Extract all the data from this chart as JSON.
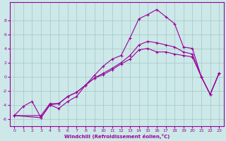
{
  "title": "",
  "xlabel": "Windchill (Refroidissement éolien,°C)",
  "ylabel": "",
  "bg_color": "#cce8e8",
  "line_color": "#990099",
  "grid_color": "#aacccc",
  "xlim": [
    -0.5,
    23.5
  ],
  "ylim": [
    -7.0,
    10.5
  ],
  "yticks": [
    -6,
    -4,
    -2,
    0,
    2,
    4,
    6,
    8
  ],
  "xticks": [
    0,
    1,
    2,
    3,
    4,
    5,
    6,
    7,
    8,
    9,
    10,
    11,
    12,
    13,
    14,
    15,
    16,
    17,
    18,
    19,
    20,
    21,
    22,
    23
  ],
  "line1_x": [
    0,
    1,
    2,
    3,
    4,
    5,
    6,
    7,
    8,
    9,
    10,
    11,
    12,
    13,
    14,
    15,
    16,
    17,
    18,
    19,
    20,
    21,
    22,
    23
  ],
  "line1_y": [
    -5.5,
    -4.2,
    -3.5,
    -5.8,
    -4.0,
    -4.5,
    -3.5,
    -2.8,
    -1.2,
    0.2,
    1.5,
    2.5,
    3.0,
    5.5,
    8.2,
    8.8,
    9.5,
    8.5,
    7.5,
    4.2,
    4.0,
    0.0,
    -2.5,
    0.5
  ],
  "line2_x": [
    0,
    3,
    4,
    5,
    6,
    7,
    8,
    9,
    10,
    11,
    12,
    13,
    14,
    15,
    16,
    17,
    18,
    19,
    20,
    21,
    22,
    23
  ],
  "line2_y": [
    -5.5,
    -5.5,
    -3.8,
    -3.8,
    -2.8,
    -2.2,
    -1.2,
    -0.2,
    0.5,
    1.2,
    2.0,
    3.0,
    4.5,
    5.0,
    4.8,
    4.5,
    4.2,
    3.5,
    3.2,
    0.0,
    -2.5,
    0.5
  ],
  "line3_x": [
    0,
    3,
    4,
    5,
    6,
    7,
    8,
    9,
    10,
    11,
    12,
    13,
    14,
    15,
    16,
    17,
    18,
    19,
    20,
    21,
    22,
    23
  ],
  "line3_y": [
    -5.5,
    -5.8,
    -4.0,
    -3.8,
    -2.8,
    -2.2,
    -1.2,
    -0.2,
    0.3,
    1.0,
    1.8,
    2.5,
    3.8,
    4.0,
    3.5,
    3.5,
    3.2,
    3.0,
    2.8,
    0.0,
    -2.5,
    0.5
  ]
}
